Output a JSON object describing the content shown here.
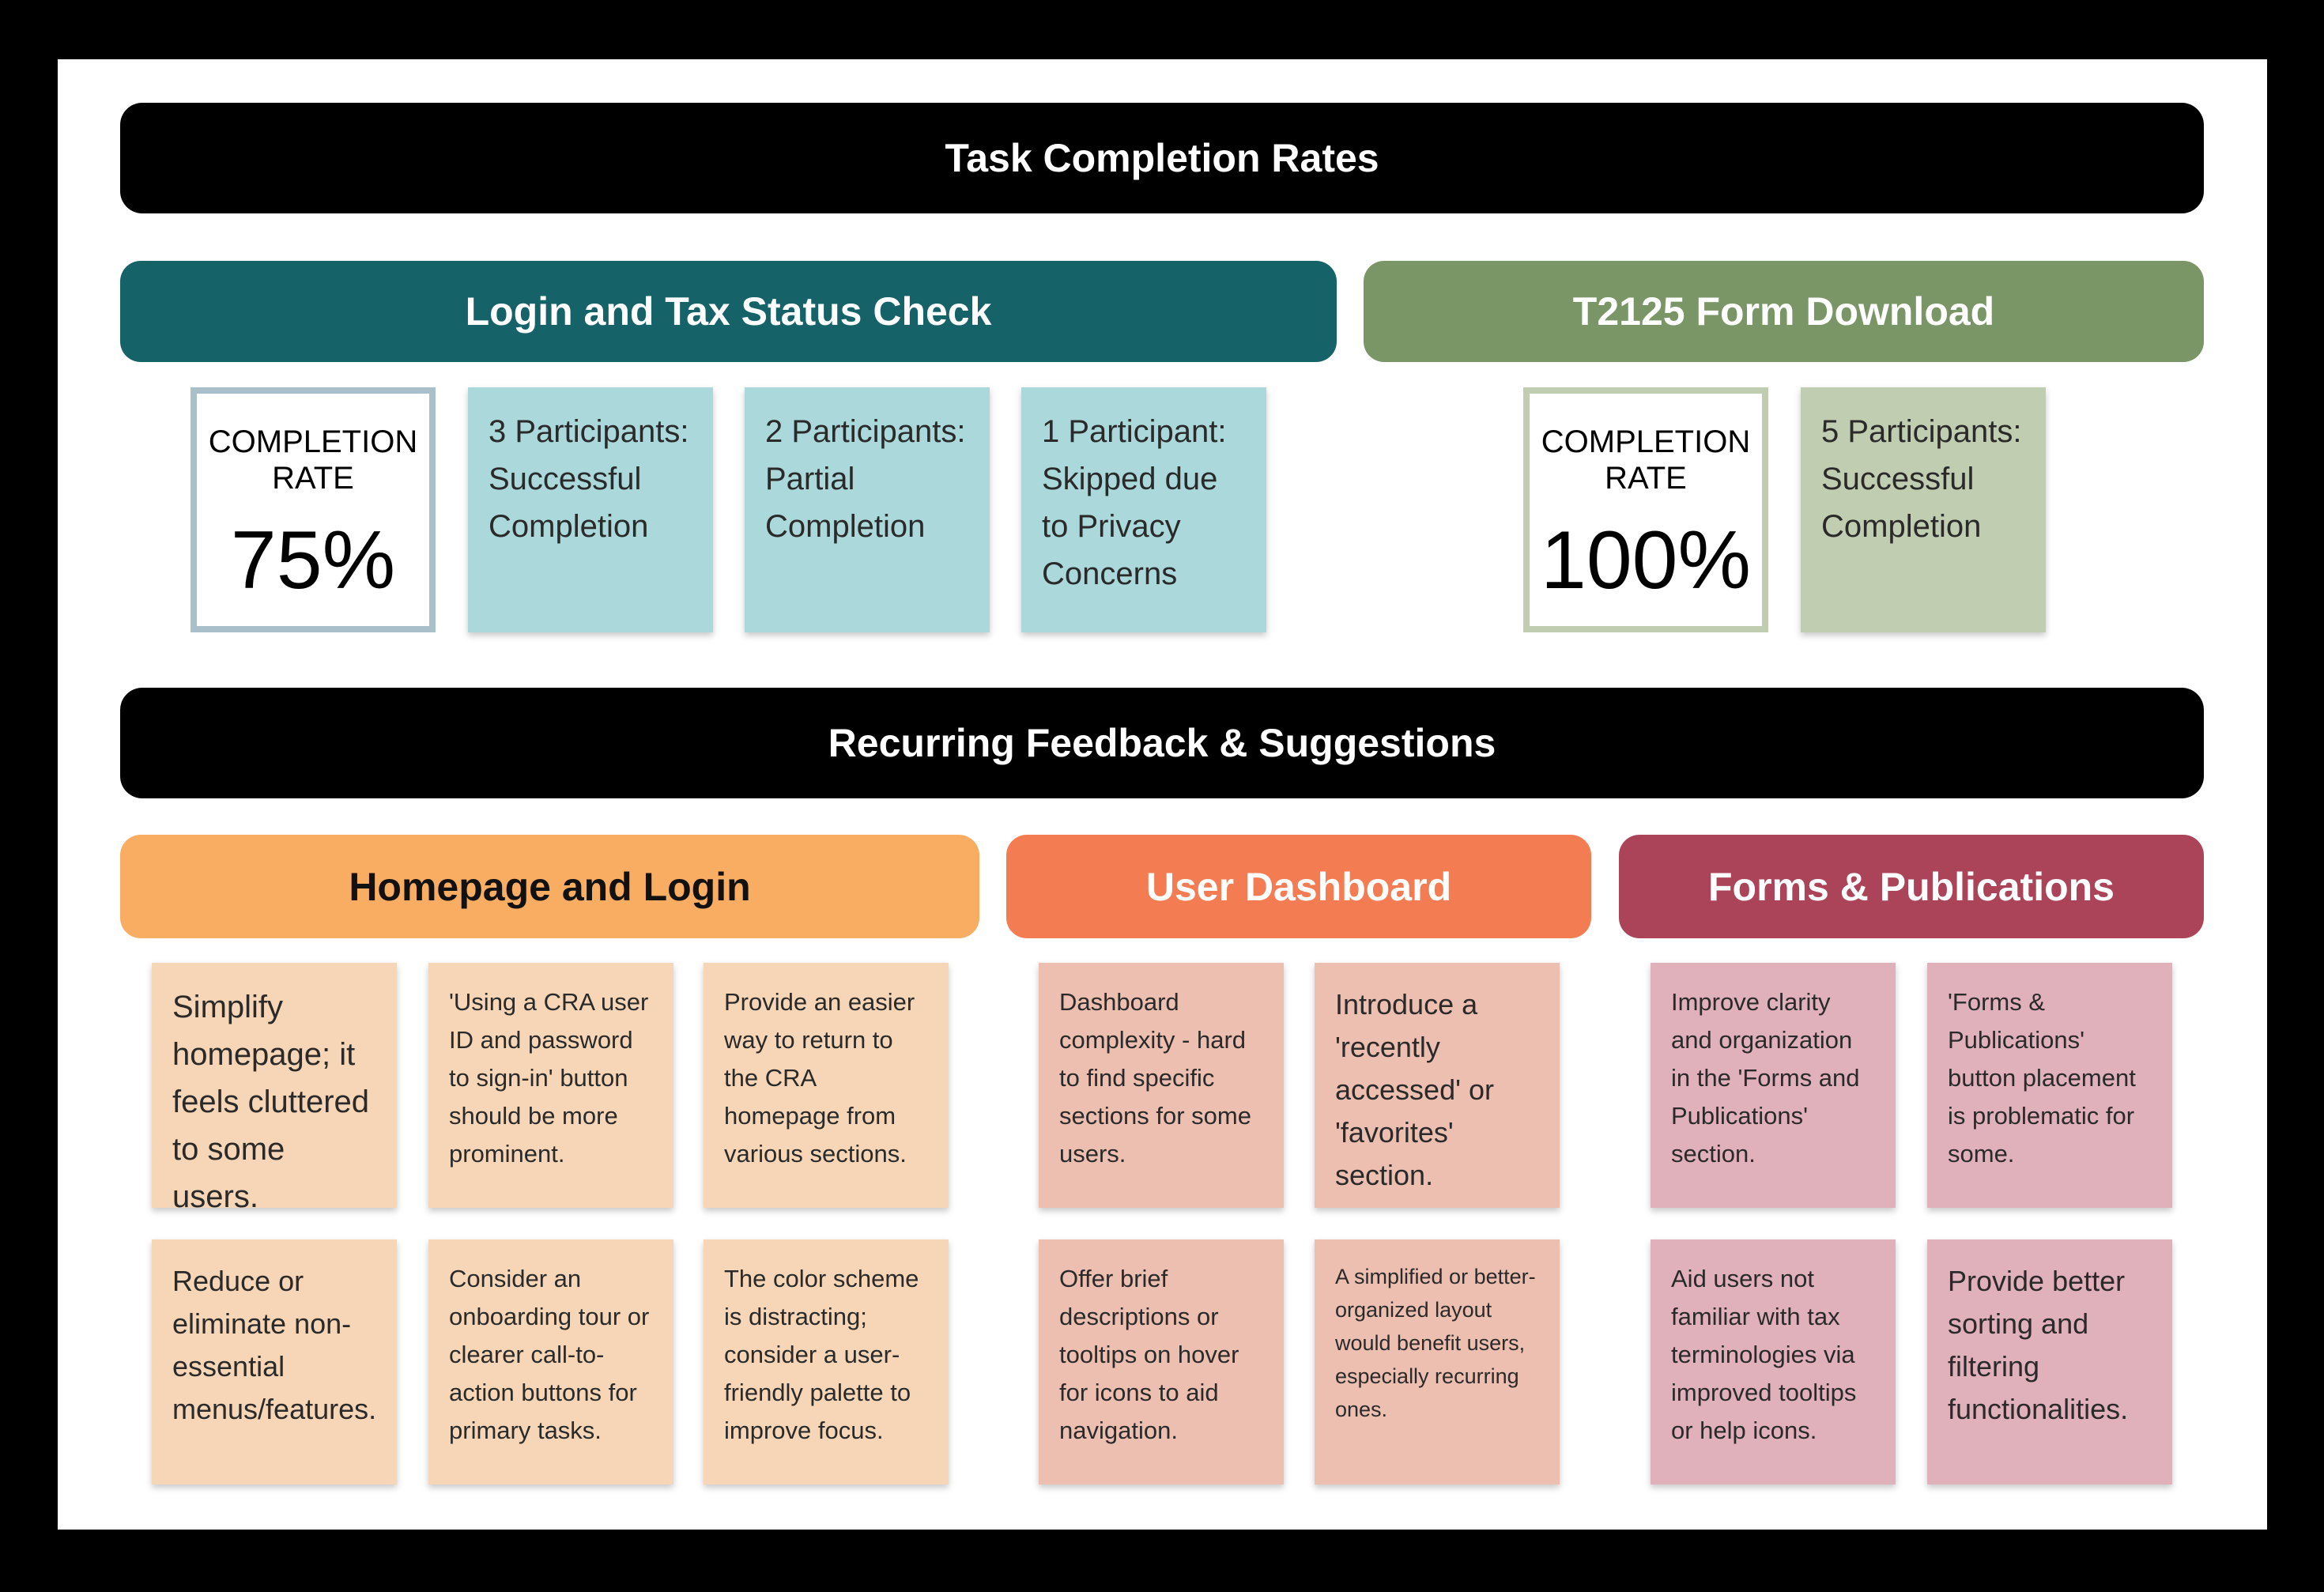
{
  "colors": {
    "teal_header": "#156268",
    "teal_card": "#abd8db",
    "teal_border": "#a9bfc9",
    "green_header": "#7a9566",
    "green_card": "#c0cdb1",
    "green_border": "#c0cdb1",
    "orange_header": "#f8ad62",
    "orange_card": "#f6d6b6",
    "coral_header": "#f47c53",
    "coral_card": "#edbfb0",
    "wine_header": "#ab4359",
    "wine_card": "#e1b1bb"
  },
  "task_completion": {
    "title": "Task Completion Rates",
    "login_section": {
      "title": "Login and Tax Status Check",
      "rate_label": "COMPLETION RATE",
      "rate_value": "75%",
      "cards": [
        "3 Participants: Successful Completion",
        "2 Participants: Partial Completion",
        "1 Participant: Skipped due to Privacy Concerns"
      ]
    },
    "t2125_section": {
      "title": "T2125 Form Download",
      "rate_label": "COMPLETION RATE",
      "rate_value": "100%",
      "cards": [
        "5 Participants: Successful Completion"
      ]
    }
  },
  "feedback": {
    "title": "Recurring Feedback & Suggestions",
    "homepage": {
      "title": "Homepage and Login",
      "notes": [
        "Simplify homepage; it feels cluttered to some users.",
        "'Using a CRA user ID and password to sign-in' button should be more prominent.",
        "Provide an easier way to return to the CRA homepage from various sections.",
        "Reduce or eliminate non-essential menus/features.",
        "Consider an onboarding tour or clearer call-to-action buttons for primary tasks.",
        "The color scheme is distracting; consider a user-friendly palette to improve focus."
      ]
    },
    "dashboard": {
      "title": "User Dashboard",
      "notes": [
        "Dashboard complexity - hard to find specific sections for some users.",
        "Introduce a 'recently accessed' or 'favorites' section.",
        "Offer brief descriptions or tooltips on hover for icons to aid navigation.",
        "A simplified or better-organized layout would benefit users, especially recurring ones."
      ]
    },
    "forms": {
      "title": "Forms & Publications",
      "notes": [
        "Improve clarity and organization in the 'Forms and Publications' section.",
        "'Forms & Publications' button placement is problematic for some.",
        "Aid users not familiar with tax terminologies via improved tooltips or help icons.",
        "Provide better sorting and filtering functionalities."
      ]
    }
  }
}
